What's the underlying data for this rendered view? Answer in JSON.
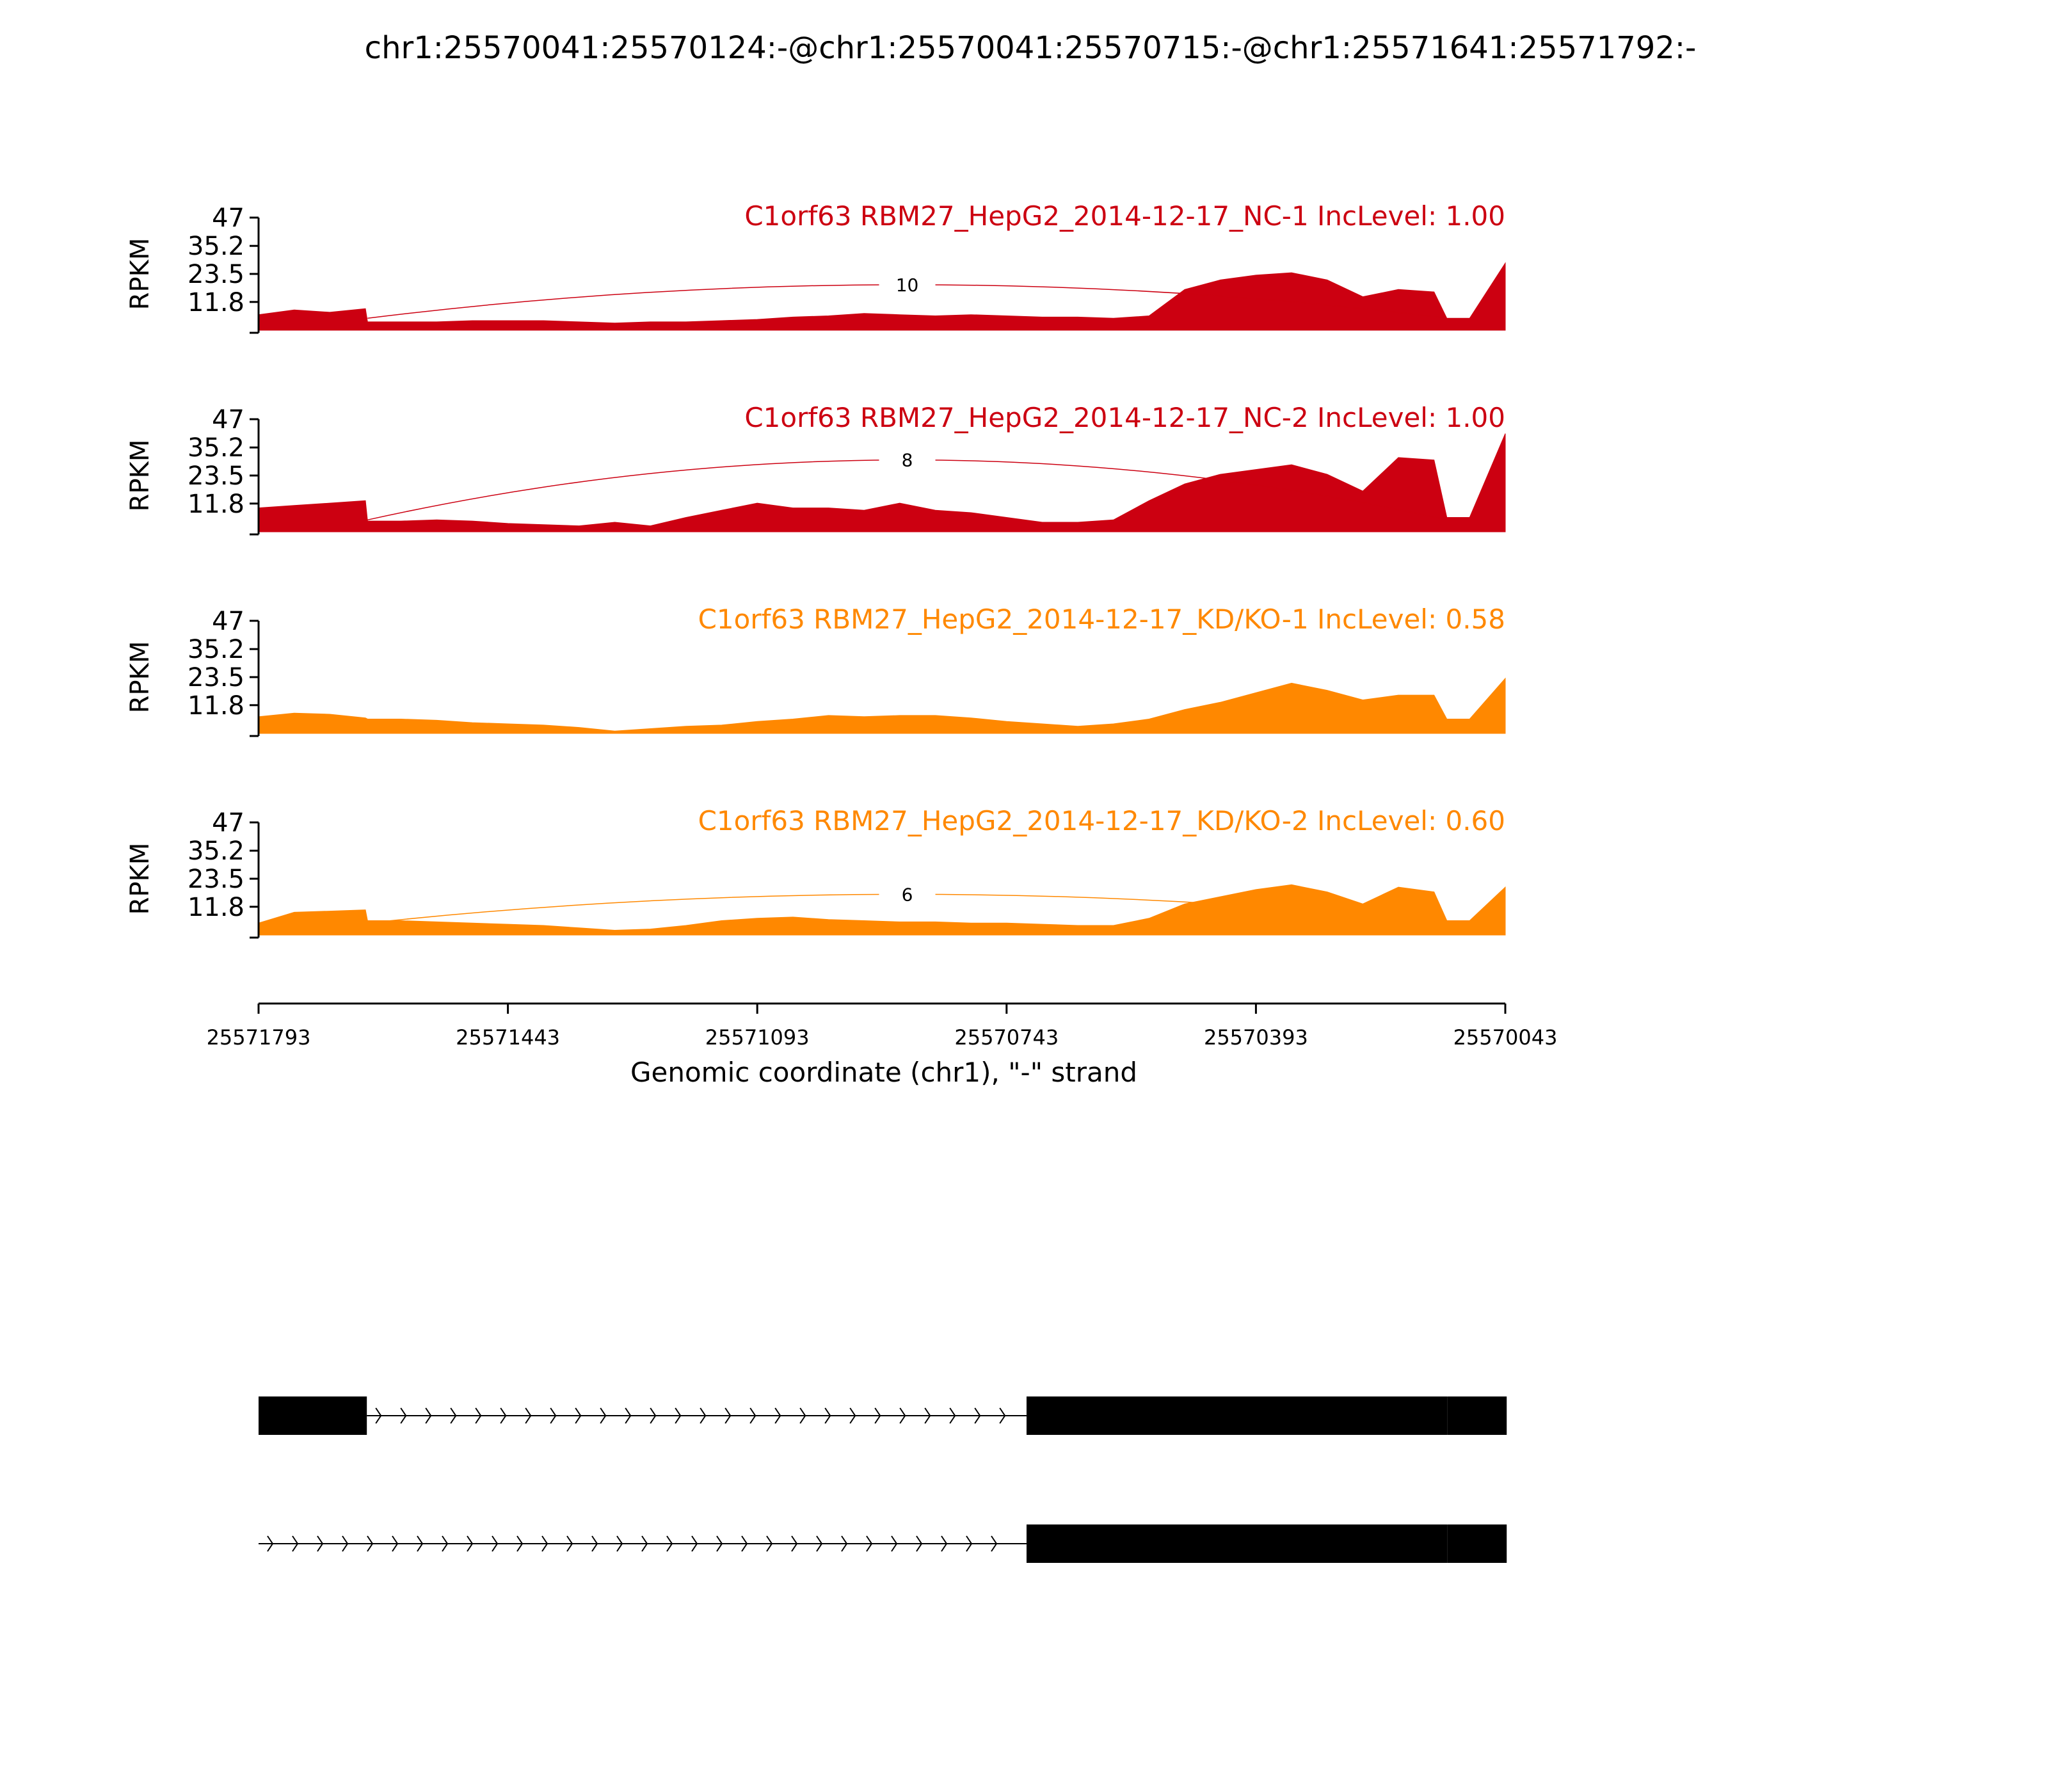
{
  "title": "chr1:25570041:25570124:-@chr1:25570041:25570715:-@chr1:25571641:25571792:-",
  "colors": {
    "nc": "#cc0011",
    "kd": "#ff8800",
    "axis": "#000000",
    "gene": "#000000"
  },
  "chart_data": {
    "type": "area",
    "title": "chr1:25570041:25570124:-@chr1:25570041:25570715:-@chr1:25571641:25571792:-",
    "xlabel": "Genomic coordinate (chr1), \"-\" strand",
    "ylabel": "RPKM",
    "xlim": [
      25571793,
      25570043
    ],
    "x_reversed": true,
    "x_ticks": [
      25571793,
      25571443,
      25571093,
      25570743,
      25570393,
      25570043
    ],
    "x_tick_labels": [
      "25571793",
      "25571443",
      "25571093",
      "25570743",
      "25570393",
      "25570043"
    ],
    "ylim": [
      0,
      47
    ],
    "y_ticks": [
      11.8,
      23.5,
      35.2,
      47
    ],
    "y_tick_labels": [
      "11.8",
      "23.5",
      "35.2",
      "47"
    ],
    "x": [
      25571793,
      25571743,
      25571693,
      25571643,
      25571640,
      25571593,
      25571543,
      25571493,
      25571443,
      25571393,
      25571343,
      25571293,
      25571243,
      25571193,
      25571143,
      25571093,
      25571043,
      25570993,
      25570943,
      25570893,
      25570843,
      25570793,
      25570743,
      25570693,
      25570643,
      25570593,
      25570543,
      25570493,
      25570443,
      25570393,
      25570343,
      25570293,
      25570243,
      25570193,
      25570143,
      25570125,
      25570093,
      25570043
    ],
    "series": [
      {
        "name": "C1orf63 RBM27_HepG2_2014-12-17_NC-1 IncLevel: 1.00",
        "group": "nc",
        "values": [
          6.5,
          8.5,
          7.5,
          9,
          3.5,
          3.5,
          3.5,
          4,
          4,
          4,
          3.5,
          3,
          3.5,
          3.5,
          4,
          4.5,
          5.5,
          6,
          7,
          6.5,
          6,
          6.5,
          6,
          5.5,
          5.5,
          5,
          6,
          17,
          21,
          23,
          24,
          21,
          14,
          17,
          16,
          5,
          5,
          28
        ],
        "junctions": [
          {
            "label": "10",
            "from": 25571640,
            "to": 25570125,
            "peak": 19
          }
        ]
      },
      {
        "name": "C1orf63 RBM27_HepG2_2014-12-17_NC-2 IncLevel: 1.00",
        "group": "nc",
        "values": [
          10,
          11,
          12,
          13,
          4.5,
          4.5,
          5,
          4.5,
          3.5,
          3,
          2.5,
          4,
          2.5,
          6,
          9,
          12,
          10,
          10,
          9,
          12,
          9,
          8,
          6,
          4,
          4,
          5,
          13,
          20,
          24,
          26,
          28,
          24,
          17,
          31,
          30,
          6,
          6,
          41
        ],
        "junctions": [
          {
            "label": "8",
            "from": 25571640,
            "to": 25570125,
            "peak": 30
          }
        ]
      },
      {
        "name": "C1orf63 RBM27_HepG2_2014-12-17_KD/KO-1 IncLevel: 0.58",
        "group": "kd",
        "values": [
          7,
          8.5,
          8,
          6.5,
          6,
          6,
          5.5,
          4.5,
          4,
          3.5,
          2.5,
          1,
          2,
          3,
          3.5,
          5,
          6,
          7.5,
          7,
          7.5,
          7.5,
          6.5,
          5,
          4,
          3,
          4,
          6,
          10,
          13,
          17,
          21,
          18,
          14,
          16,
          16,
          6,
          6,
          23
        ],
        "junctions": []
      },
      {
        "name": "C1orf63 RBM27_HepG2_2014-12-17_KD/KO-2 IncLevel: 0.60",
        "group": "kd",
        "values": [
          5,
          9.5,
          10,
          10.5,
          6,
          6,
          5.5,
          5,
          4.5,
          4,
          3,
          2,
          2.5,
          4,
          6,
          7,
          7.5,
          6.5,
          6,
          5.5,
          5.5,
          5,
          5,
          4.5,
          4,
          4,
          7,
          13,
          16,
          19,
          21,
          18,
          13,
          20,
          18,
          6,
          6,
          20
        ],
        "junctions": [
          {
            "label": "6",
            "from": 25571640,
            "to": 25570125,
            "peak": 17
          }
        ]
      }
    ],
    "transcripts": [
      {
        "exons": [
          [
            25571793,
            25571641
          ],
          [
            25570715,
            25570124
          ],
          [
            25570124,
            25570041
          ]
        ],
        "intron_arrows": true
      },
      {
        "exons": [
          [
            25570715,
            25570124
          ],
          [
            25570124,
            25570041
          ]
        ],
        "intron_arrows": true
      }
    ]
  }
}
